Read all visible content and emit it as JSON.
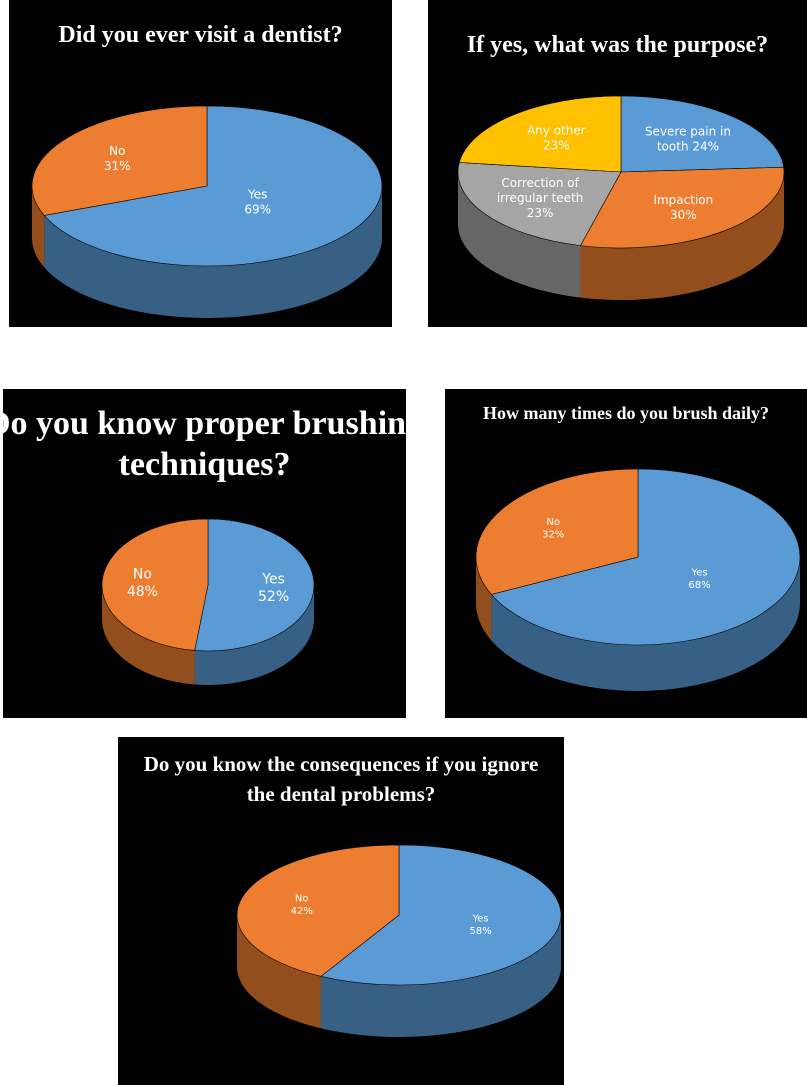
{
  "colors": {
    "background": "#000000",
    "blue": "#5b9bd5",
    "orange": "#ed7d31",
    "gray": "#a5a5a5",
    "gold": "#ffc000",
    "text": "#ffffff"
  },
  "chart_data": [
    {
      "type": "pie",
      "title": "Did you ever visit a dentist?",
      "series": [
        {
          "values": [
            69,
            31
          ]
        }
      ],
      "categories": [
        "Yes",
        "No"
      ],
      "labels": [
        {
          "lines": [
            "Yes",
            "69%"
          ]
        },
        {
          "lines": [
            "No",
            "31%"
          ]
        }
      ]
    },
    {
      "type": "pie",
      "title": "If yes, what was the purpose?",
      "series": [
        {
          "values": [
            24,
            30,
            23,
            23
          ]
        }
      ],
      "categories": [
        "Severe pain in tooth",
        "Impaction",
        "Correction of irregular teeth",
        "Any other"
      ],
      "labels": [
        {
          "lines": [
            "Severe pain in",
            "tooth 24%"
          ]
        },
        {
          "lines": [
            "Impaction",
            "30%"
          ]
        },
        {
          "lines": [
            "Correction of",
            "irregular teeth",
            "23%"
          ]
        },
        {
          "lines": [
            "Any other",
            "23%"
          ]
        }
      ]
    },
    {
      "type": "pie",
      "title": "Do you know proper brushing techniques?",
      "title_lines": [
        "Do you know proper brushing",
        "techniques?"
      ],
      "series": [
        {
          "values": [
            52,
            48
          ]
        }
      ],
      "categories": [
        "Yes",
        "No"
      ],
      "labels": [
        {
          "lines": [
            "Yes",
            "52%"
          ]
        },
        {
          "lines": [
            "No",
            "48%"
          ]
        }
      ]
    },
    {
      "type": "pie",
      "title": "How many times do you brush daily?",
      "series": [
        {
          "values": [
            68,
            32
          ]
        }
      ],
      "categories": [
        "Yes",
        "No"
      ],
      "labels": [
        {
          "lines": [
            "Yes",
            "68%"
          ]
        },
        {
          "lines": [
            "No",
            "32%"
          ]
        }
      ]
    },
    {
      "type": "pie",
      "title": "Do you know the consequences if you ignore the dental problems?",
      "title_lines": [
        "Do you know the consequences if you ignore",
        "the dental problems?"
      ],
      "series": [
        {
          "values": [
            58,
            42
          ]
        }
      ],
      "categories": [
        "Yes",
        "No"
      ],
      "labels": [
        {
          "lines": [
            "Yes",
            "58%"
          ]
        },
        {
          "lines": [
            "No",
            "42%"
          ]
        }
      ]
    }
  ]
}
